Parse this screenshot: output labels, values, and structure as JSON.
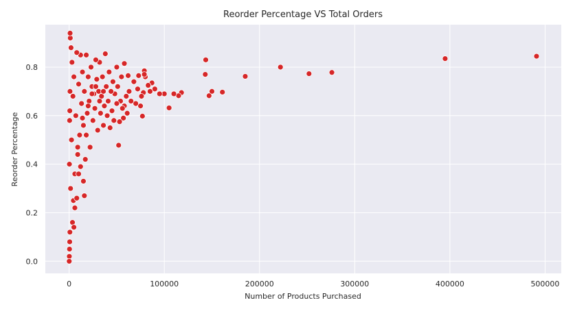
{
  "chart_data": {
    "type": "scatter",
    "title": "Reorder Percentage VS Total Orders",
    "xlabel": "Number of Products Purchased",
    "ylabel": "Reorder Percentage",
    "xlim": [
      -25000,
      517000
    ],
    "ylim": [
      -0.05,
      0.975
    ],
    "x_ticks": [
      0,
      100000,
      200000,
      300000,
      400000,
      500000
    ],
    "y_ticks": [
      0.0,
      0.2,
      0.4,
      0.6,
      0.8
    ],
    "x_tick_labels": [
      "0",
      "100000",
      "200000",
      "300000",
      "400000",
      "500000"
    ],
    "y_tick_labels": [
      "0.0",
      "0.2",
      "0.4",
      "0.6",
      "0.8"
    ],
    "grid": true,
    "marker_color": "#d62728",
    "background_color": "#eaeaf2",
    "points": [
      [
        491000,
        0.845
      ],
      [
        395000,
        0.835
      ],
      [
        276000,
        0.778
      ],
      [
        252000,
        0.773
      ],
      [
        222000,
        0.8
      ],
      [
        185000,
        0.762
      ],
      [
        161000,
        0.697
      ],
      [
        150000,
        0.7
      ],
      [
        147000,
        0.682
      ],
      [
        143500,
        0.83
      ],
      [
        143000,
        0.77
      ],
      [
        118000,
        0.695
      ],
      [
        115000,
        0.682
      ],
      [
        110000,
        0.69
      ],
      [
        105000,
        0.632
      ],
      [
        100000,
        0.69
      ],
      [
        95000,
        0.69
      ],
      [
        90000,
        0.71
      ],
      [
        87000,
        0.735
      ],
      [
        85000,
        0.7
      ],
      [
        83000,
        0.725
      ],
      [
        80000,
        0.76
      ],
      [
        79000,
        0.785
      ],
      [
        79000,
        0.77
      ],
      [
        78000,
        0.695
      ],
      [
        77000,
        0.598
      ],
      [
        76000,
        0.68
      ],
      [
        75000,
        0.64
      ],
      [
        73000,
        0.765
      ],
      [
        72000,
        0.71
      ],
      [
        70000,
        0.65
      ],
      [
        68000,
        0.74
      ],
      [
        65000,
        0.66
      ],
      [
        63000,
        0.7
      ],
      [
        62000,
        0.765
      ],
      [
        61000,
        0.61
      ],
      [
        60000,
        0.68
      ],
      [
        58000,
        0.815
      ],
      [
        58000,
        0.64
      ],
      [
        57000,
        0.59
      ],
      [
        56000,
        0.63
      ],
      [
        55000,
        0.76
      ],
      [
        54000,
        0.66
      ],
      [
        53000,
        0.575
      ],
      [
        52000,
        0.478
      ],
      [
        51000,
        0.72
      ],
      [
        50000,
        0.8
      ],
      [
        50000,
        0.65
      ],
      [
        48000,
        0.69
      ],
      [
        47000,
        0.58
      ],
      [
        46000,
        0.74
      ],
      [
        45000,
        0.62
      ],
      [
        44000,
        0.7
      ],
      [
        43000,
        0.55
      ],
      [
        42000,
        0.78
      ],
      [
        41000,
        0.66
      ],
      [
        40000,
        0.6
      ],
      [
        39000,
        0.72
      ],
      [
        38000,
        0.855
      ],
      [
        37000,
        0.64
      ],
      [
        36000,
        0.56
      ],
      [
        35000,
        0.76
      ],
      [
        34000,
        0.68
      ],
      [
        33000,
        0.61
      ],
      [
        32000,
        0.82
      ],
      [
        31000,
        0.7
      ],
      [
        30000,
        0.54
      ],
      [
        29000,
        0.75
      ],
      [
        28000,
        0.83
      ],
      [
        27000,
        0.63
      ],
      [
        26000,
        0.69
      ],
      [
        25000,
        0.58
      ],
      [
        24000,
        0.72
      ],
      [
        23000,
        0.8
      ],
      [
        22000,
        0.47
      ],
      [
        21000,
        0.66
      ],
      [
        20000,
        0.76
      ],
      [
        19000,
        0.61
      ],
      [
        18000,
        0.85
      ],
      [
        17000,
        0.42
      ],
      [
        16000,
        0.7
      ],
      [
        15000,
        0.56
      ],
      [
        14000,
        0.78
      ],
      [
        13000,
        0.65
      ],
      [
        12000,
        0.85
      ],
      [
        11000,
        0.52
      ],
      [
        10000,
        0.73
      ],
      [
        9000,
        0.44
      ],
      [
        8000,
        0.86
      ],
      [
        7000,
        0.6
      ],
      [
        6000,
        0.36
      ],
      [
        5000,
        0.76
      ],
      [
        4500,
        0.25
      ],
      [
        4000,
        0.68
      ],
      [
        3500,
        0.16
      ],
      [
        3000,
        0.82
      ],
      [
        2500,
        0.5
      ],
      [
        2000,
        0.88
      ],
      [
        1500,
        0.3
      ],
      [
        1200,
        0.92
      ],
      [
        1000,
        0.94
      ],
      [
        800,
        0.12
      ],
      [
        600,
        0.08
      ],
      [
        400,
        0.05
      ],
      [
        200,
        0.02
      ],
      [
        100,
        0.0
      ],
      [
        900,
        0.7
      ],
      [
        700,
        0.62
      ],
      [
        500,
        0.58
      ],
      [
        300,
        0.4
      ],
      [
        20000,
        0.64
      ],
      [
        24000,
        0.69
      ],
      [
        28000,
        0.72
      ],
      [
        32000,
        0.66
      ],
      [
        36000,
        0.7
      ],
      [
        15000,
        0.33
      ],
      [
        16000,
        0.27
      ],
      [
        12000,
        0.39
      ],
      [
        10000,
        0.36
      ],
      [
        8000,
        0.26
      ],
      [
        6000,
        0.22
      ],
      [
        5000,
        0.14
      ],
      [
        9000,
        0.47
      ],
      [
        14000,
        0.59
      ],
      [
        18000,
        0.52
      ]
    ]
  }
}
